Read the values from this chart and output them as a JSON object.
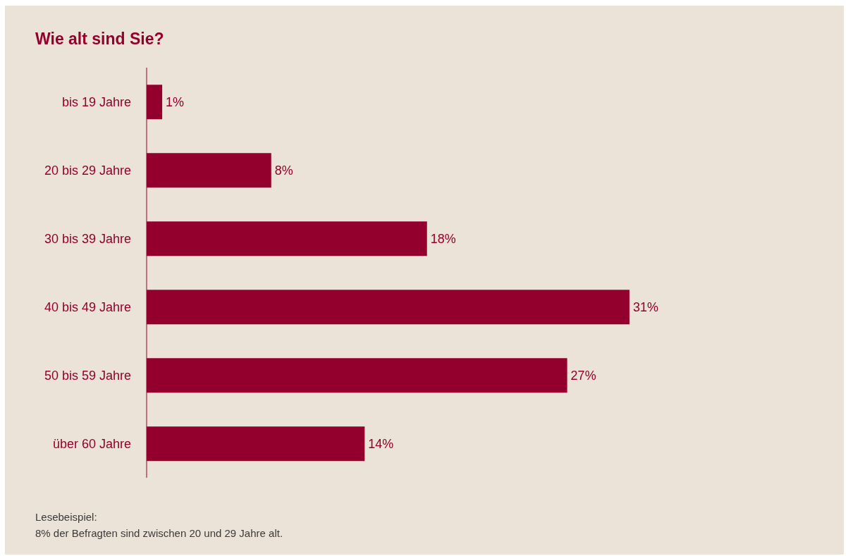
{
  "chart_data": {
    "type": "bar",
    "orientation": "horizontal",
    "title": "Wie alt sind Sie?",
    "categories": [
      "bis 19 Jahre",
      "20 bis 29 Jahre",
      "30 bis 39 Jahre",
      "40 bis 49 Jahre",
      "50 bis 59 Jahre",
      "über 60 Jahre"
    ],
    "values": [
      1,
      8,
      18,
      31,
      27,
      14
    ],
    "value_labels": [
      "1%",
      "8%",
      "18%",
      "31%",
      "27%",
      "14%"
    ],
    "color": "#93002d",
    "tick_labels": "y",
    "annotations": [
      "Lesebeispiel:",
      "8% der Befragten sind zwischen 20 und 29 Jahre alt."
    ]
  }
}
